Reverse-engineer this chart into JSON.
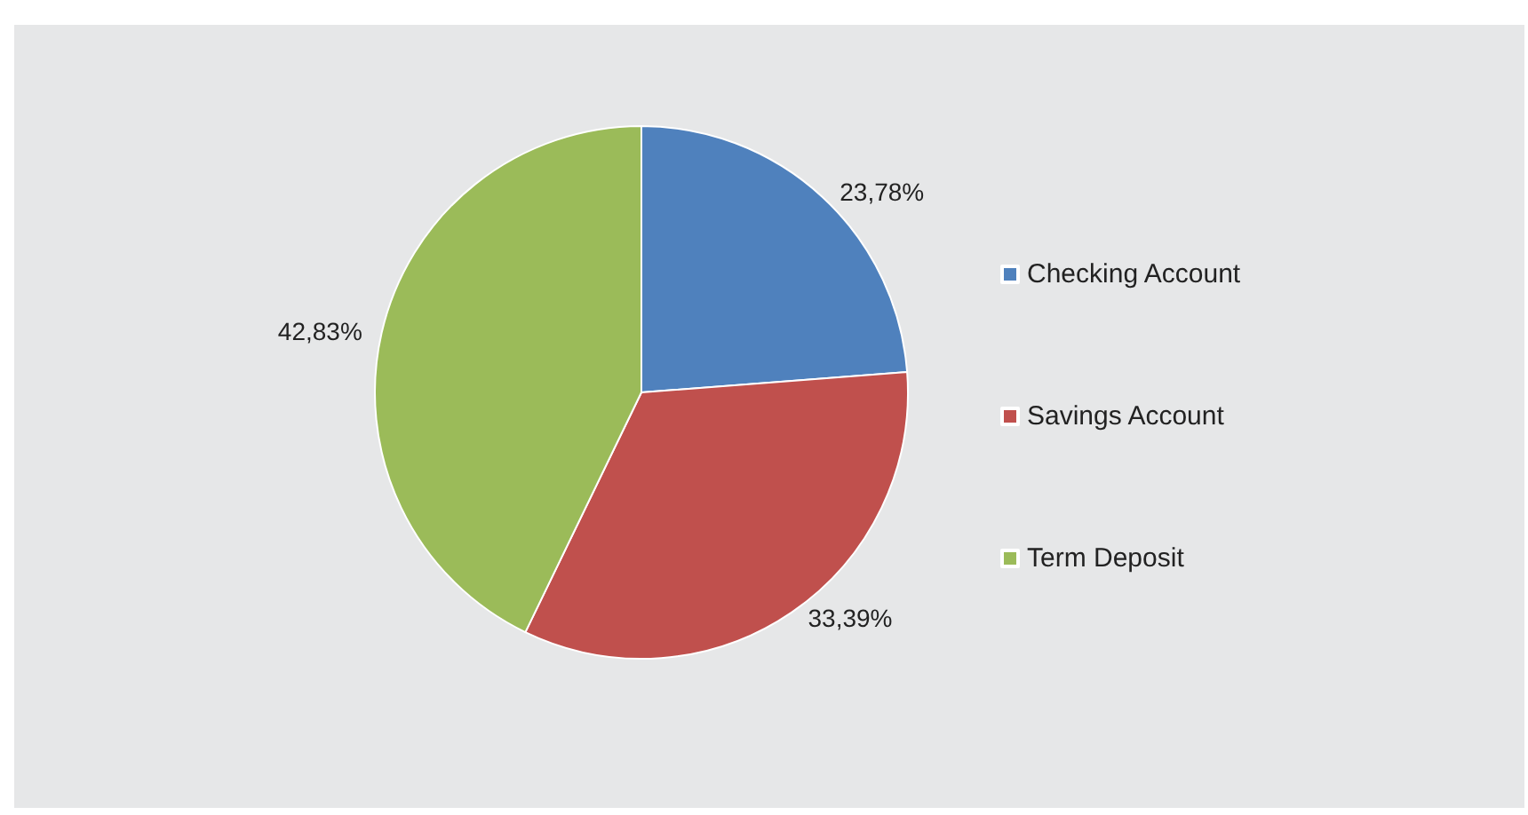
{
  "chart_data": {
    "type": "pie",
    "categories": [
      "Checking Account",
      "Savings Account",
      "Term Deposit"
    ],
    "values": [
      23.78,
      33.39,
      42.83
    ],
    "value_labels": [
      "23,78%",
      "33,39%",
      "42,83%"
    ],
    "colors": [
      "#4f81bd",
      "#c0504d",
      "#9bbb59"
    ],
    "legend": "right"
  }
}
